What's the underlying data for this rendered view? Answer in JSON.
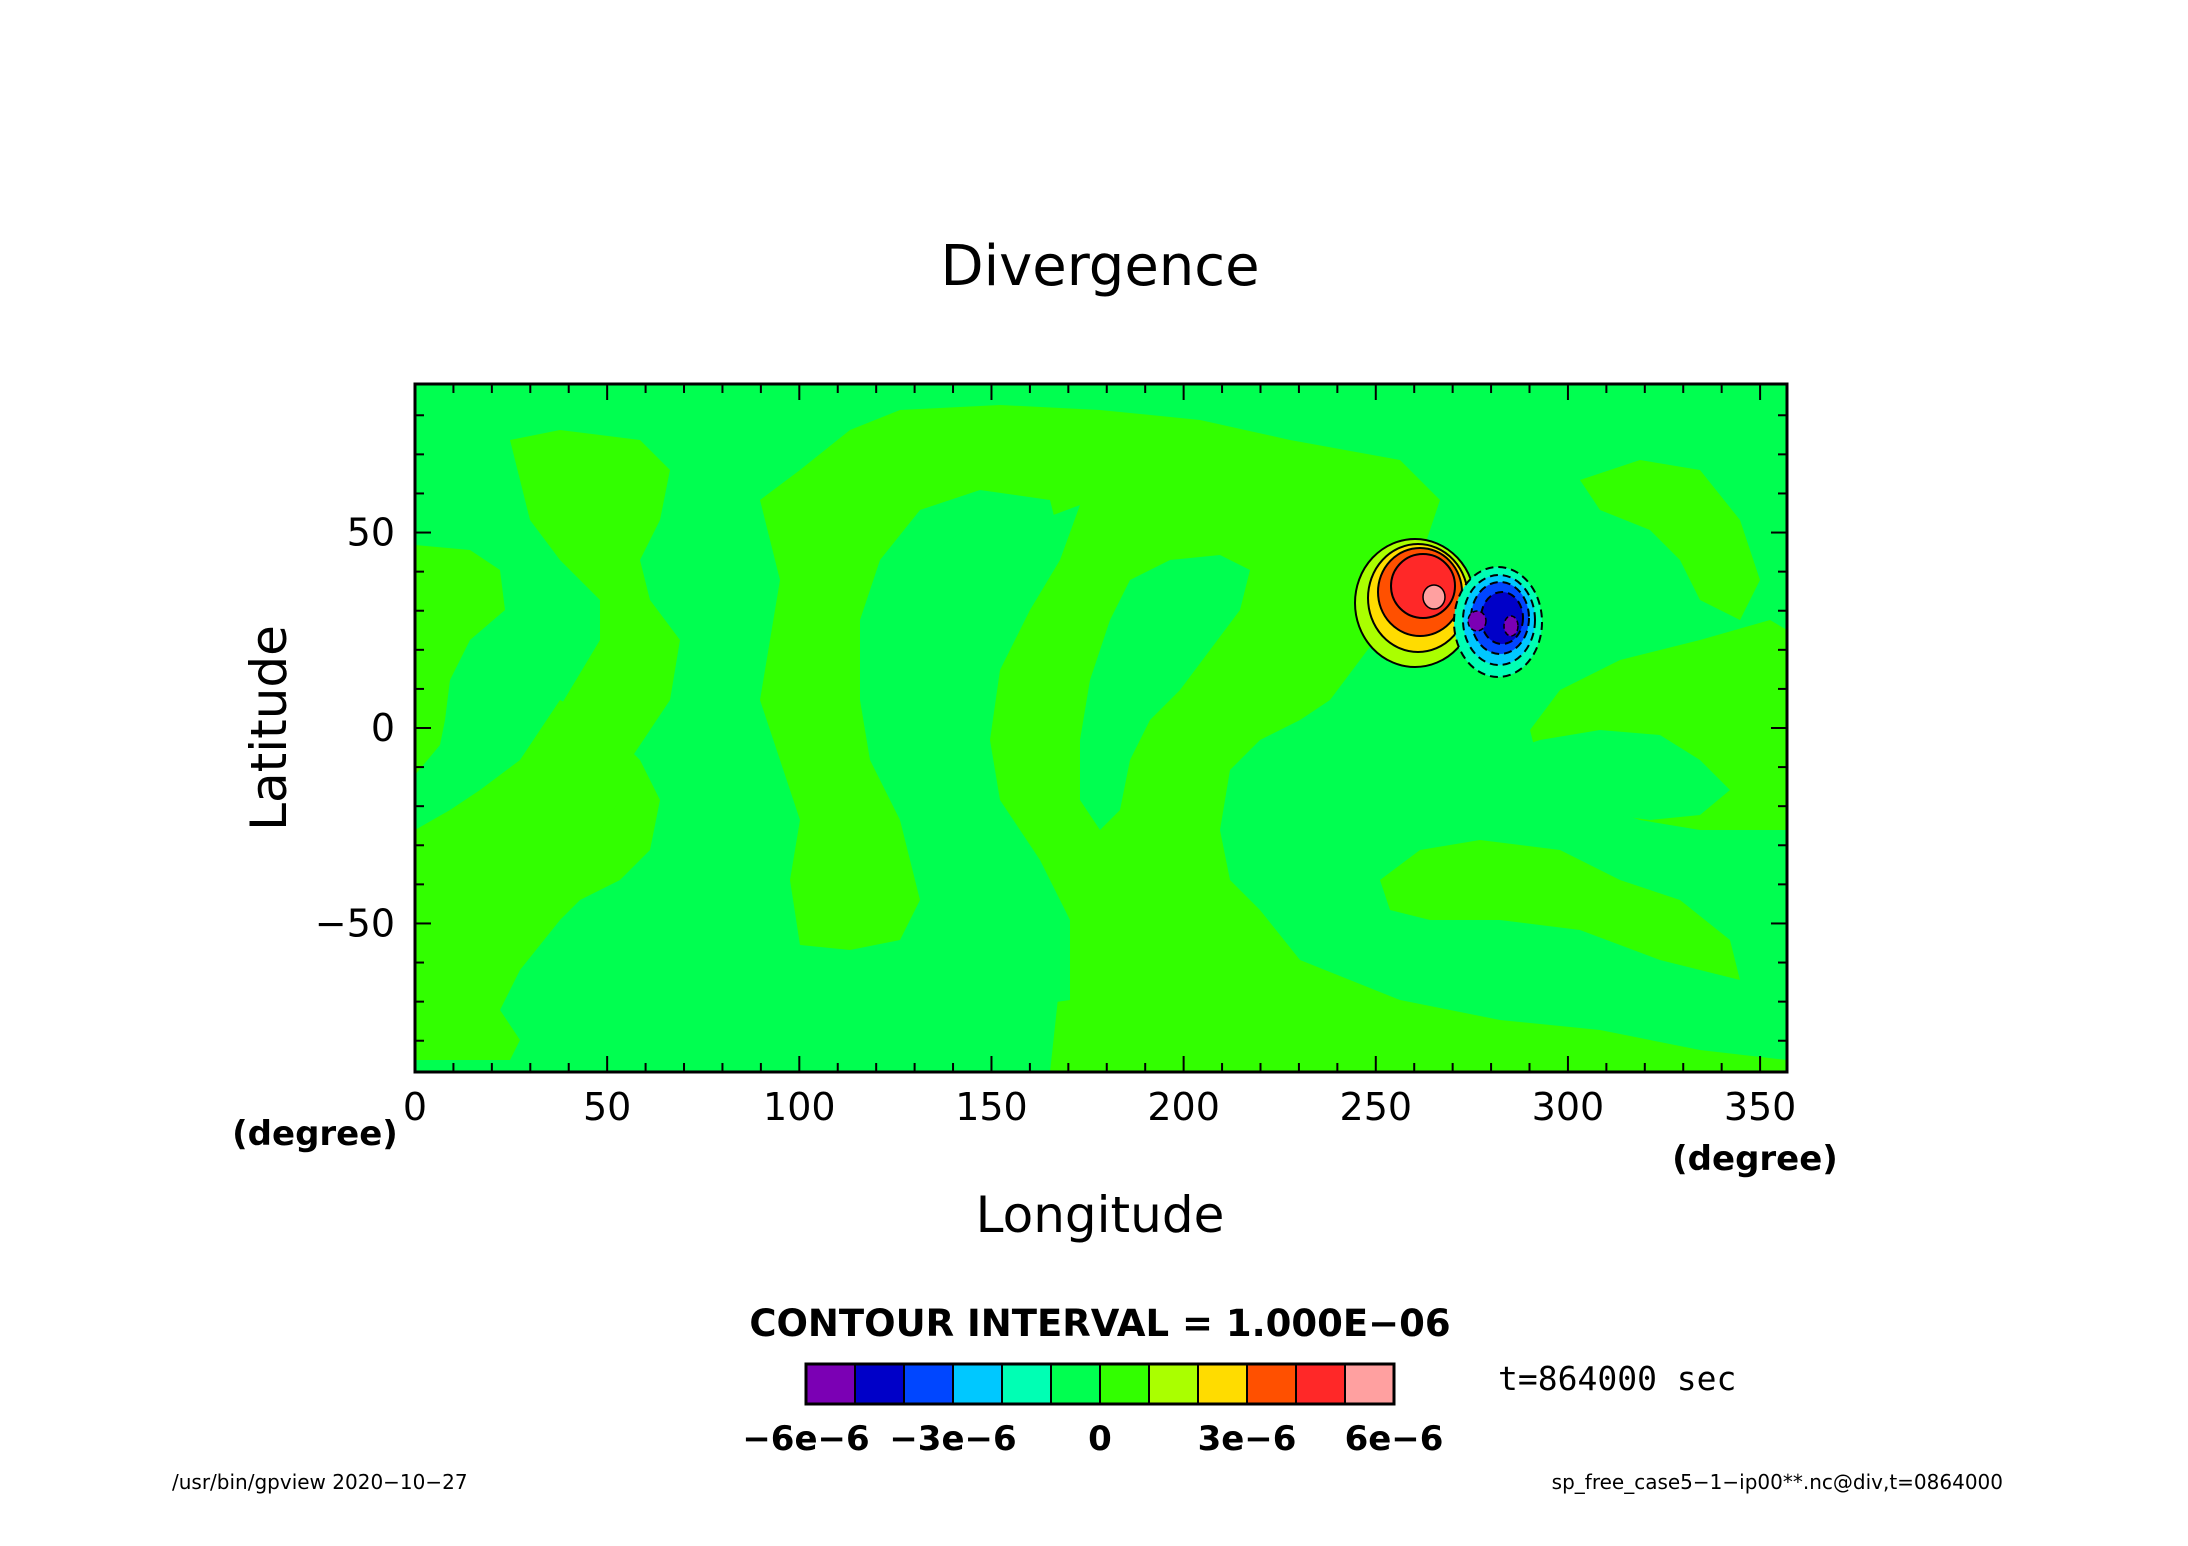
{
  "chart_data": {
    "type": "heatmap",
    "title": "Divergence",
    "xlabel": "Longitude",
    "ylabel": "Latitude",
    "x_unit": "(degree)",
    "y_unit": "(degree)",
    "xlim": [
      0,
      357
    ],
    "ylim": [
      -88,
      88
    ],
    "x_ticks": [
      0,
      50,
      100,
      150,
      200,
      250,
      300,
      350
    ],
    "y_ticks": [
      50,
      0,
      -50
    ],
    "x_tick_labels": [
      "0",
      "50",
      "100",
      "150",
      "200",
      "250",
      "300",
      "350"
    ],
    "y_tick_labels": [
      "50",
      "0",
      "−50"
    ],
    "contour_interval_text": "CONTOUR INTERVAL = 1.000E−06",
    "contour_interval": 1e-06,
    "colorbar": {
      "levels": [
        -6e-06,
        -5e-06,
        -4e-06,
        -3e-06,
        -2e-06,
        -1e-06,
        0,
        1e-06,
        2e-06,
        3e-06,
        4e-06,
        5e-06,
        6e-06
      ],
      "colors": [
        "#7b00b4",
        "#0000c8",
        "#0046ff",
        "#00c8ff",
        "#00ffb4",
        "#00ff50",
        "#32ff00",
        "#aaff00",
        "#ffdc00",
        "#ff5000",
        "#ff2828",
        "#ffa0a0"
      ],
      "tick_labels": [
        "−6e−6",
        "−3e−6",
        "0",
        "3e−6",
        "6e−6"
      ],
      "tick_values": [
        -6e-06,
        -3e-06,
        0,
        3e-06,
        6e-06
      ]
    },
    "time_label": "t=864000 sec",
    "features": [
      {
        "kind": "positive-center",
        "lon": 263,
        "lat": 32,
        "max": 6e-06
      },
      {
        "kind": "negative-center",
        "lon": 282,
        "lat": 27,
        "min": -6e-06
      }
    ]
  },
  "footer": {
    "left": "/usr/bin/gpview   2020−10−27",
    "right": "sp_free_case5−1−ip00**.nc@div,t=0864000"
  }
}
